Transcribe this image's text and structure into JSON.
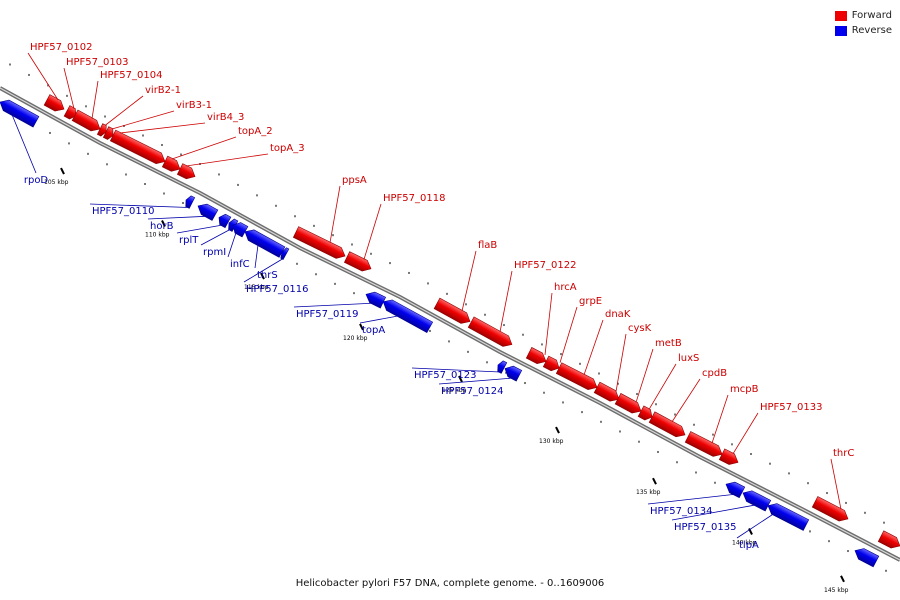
{
  "legend": {
    "forward": {
      "label": "Forward",
      "color": "#ee0000"
    },
    "reverse": {
      "label": "Reverse",
      "color": "#0000ee"
    }
  },
  "caption": "Helicobacter pylori F57 DNA, complete genome. - 0..1609006",
  "colors": {
    "forward_label": "#cc0000",
    "reverse_label": "#0000aa",
    "backbone": "#888888"
  },
  "ticks": [
    "105 kbp",
    "110 kbp",
    "115 kbp",
    "120 kbp",
    "125 kbp",
    "130 kbp",
    "135 kbp",
    "140 kbp",
    "145 kbp"
  ],
  "genes": [
    {
      "name": "rpoD",
      "strand": "reverse"
    },
    {
      "name": "HPF57_0102",
      "strand": "forward"
    },
    {
      "name": "HPF57_0103",
      "strand": "forward"
    },
    {
      "name": "HPF57_0104",
      "strand": "forward"
    },
    {
      "name": "virB2-1",
      "strand": "forward"
    },
    {
      "name": "virB3-1",
      "strand": "forward"
    },
    {
      "name": "virB4_3",
      "strand": "forward"
    },
    {
      "name": "topA_2",
      "strand": "forward"
    },
    {
      "name": "topA_3",
      "strand": "forward"
    },
    {
      "name": "HPF57_0110",
      "strand": "reverse"
    },
    {
      "name": "horB",
      "strand": "reverse"
    },
    {
      "name": "rplT",
      "strand": "reverse"
    },
    {
      "name": "rpmI",
      "strand": "reverse"
    },
    {
      "name": "infC",
      "strand": "reverse"
    },
    {
      "name": "thrS",
      "strand": "reverse"
    },
    {
      "name": "HPF57_0116",
      "strand": "reverse"
    },
    {
      "name": "ppsA",
      "strand": "forward"
    },
    {
      "name": "HPF57_0118",
      "strand": "forward"
    },
    {
      "name": "HPF57_0119",
      "strand": "reverse"
    },
    {
      "name": "topA",
      "strand": "reverse"
    },
    {
      "name": "flaB",
      "strand": "forward"
    },
    {
      "name": "HPF57_0122",
      "strand": "forward"
    },
    {
      "name": "HPF57_0123",
      "strand": "reverse"
    },
    {
      "name": "HPF57_0124",
      "strand": "reverse"
    },
    {
      "name": "hrcA",
      "strand": "forward"
    },
    {
      "name": "grpE",
      "strand": "forward"
    },
    {
      "name": "dnaK",
      "strand": "forward"
    },
    {
      "name": "cysK",
      "strand": "forward"
    },
    {
      "name": "metB",
      "strand": "forward"
    },
    {
      "name": "luxS",
      "strand": "forward"
    },
    {
      "name": "cpdB",
      "strand": "forward"
    },
    {
      "name": "mcpB",
      "strand": "forward"
    },
    {
      "name": "HPF57_0133",
      "strand": "forward"
    },
    {
      "name": "HPF57_0134",
      "strand": "reverse"
    },
    {
      "name": "HPF57_0135",
      "strand": "reverse"
    },
    {
      "name": "tlpA",
      "strand": "reverse"
    },
    {
      "name": "thrC",
      "strand": "forward"
    }
  ]
}
